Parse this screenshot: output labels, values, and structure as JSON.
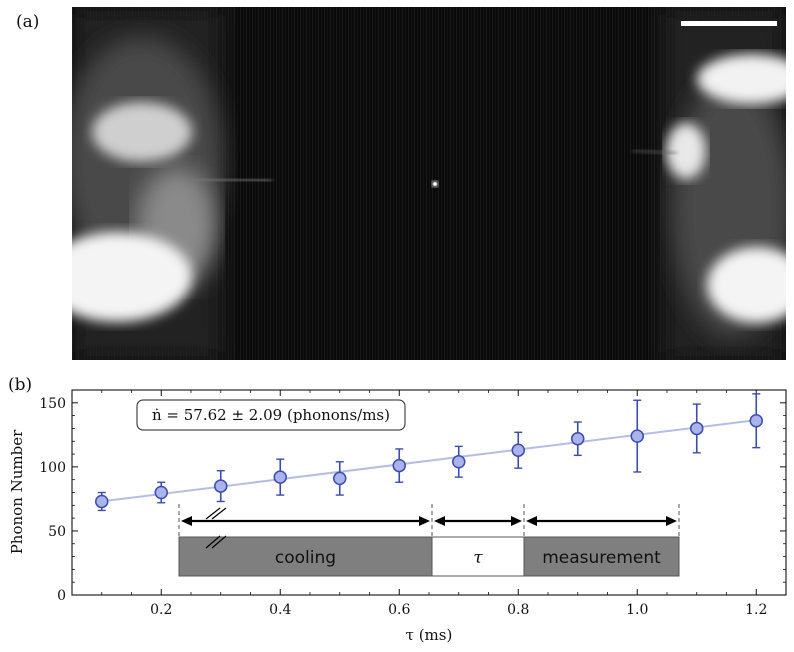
{
  "panel_a_label": "(a)",
  "panel_b_label": "(b)",
  "colors": {
    "marker_fill": "#aab4ea",
    "marker_edge": "#3b4bb0",
    "fit_line": "#b4bde6",
    "block": "#7f7f7f"
  },
  "chart_data": {
    "type": "scatter",
    "xlabel": "τ (ms)",
    "ylabel": "Phonon Number",
    "xlim": [
      0.05,
      1.25
    ],
    "ylim": [
      0,
      160
    ],
    "xticks": [
      0.2,
      0.4,
      0.6,
      0.8,
      1.0,
      1.2
    ],
    "xtick_labels": [
      "0.2",
      "0.4",
      "0.6",
      "0.8",
      "1.0",
      "1.2"
    ],
    "yticks": [
      0,
      50,
      100,
      150
    ],
    "ytick_labels": [
      "0",
      "50",
      "100",
      "150"
    ],
    "grid": false,
    "annotation": "ṅ = 57.62 ± 2.09 (phonons/ms)",
    "series": [
      {
        "x": [
          0.1,
          0.2,
          0.3,
          0.4,
          0.5,
          0.6,
          0.7,
          0.8,
          0.9,
          1.0,
          1.1,
          1.2
        ],
        "y": [
          73,
          80,
          85,
          92,
          91,
          101,
          104,
          113,
          122,
          124,
          130,
          136
        ],
        "err": [
          7,
          8,
          12,
          14,
          13,
          13,
          12,
          14,
          13,
          28,
          19,
          21
        ]
      }
    ],
    "fit": {
      "x": [
        0.1,
        1.2
      ],
      "y": [
        73.1,
        136.5
      ]
    },
    "timing": {
      "cooling_label": "cooling",
      "tau_label": "τ",
      "measurement_label": "measurement"
    }
  }
}
